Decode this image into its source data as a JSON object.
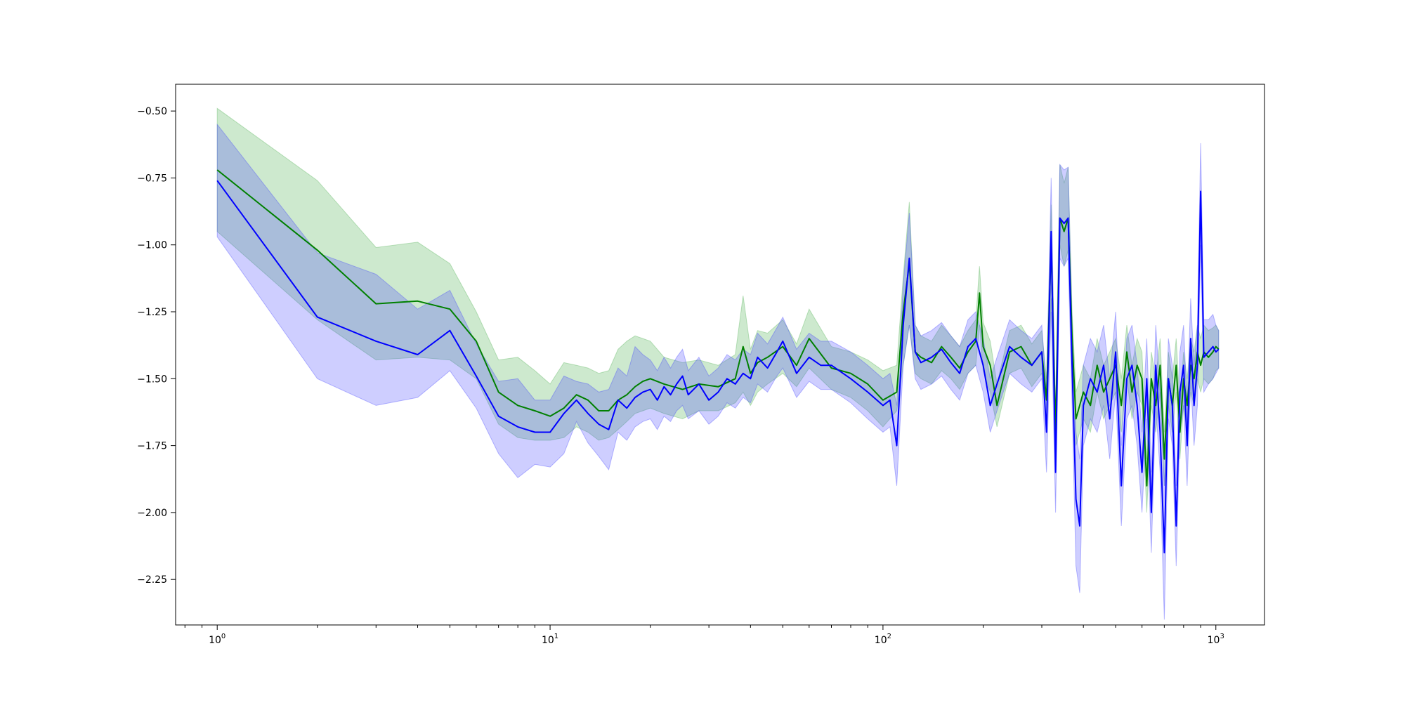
{
  "chart_data": {
    "type": "line",
    "title": "",
    "xlabel": "",
    "ylabel": "",
    "xscale": "log",
    "xlim": [
      0.75,
      1400
    ],
    "ylim": [
      -2.42,
      -0.4
    ],
    "grid": false,
    "x_ticks": [
      {
        "value": 1,
        "base": "10",
        "exp": "0"
      },
      {
        "value": 10,
        "base": "10",
        "exp": "1"
      },
      {
        "value": 100,
        "base": "10",
        "exp": "2"
      },
      {
        "value": 1000,
        "base": "10",
        "exp": "3"
      }
    ],
    "y_ticks": [
      {
        "value": -0.5,
        "label": "−0.50"
      },
      {
        "value": -0.75,
        "label": "−0.75"
      },
      {
        "value": -1.0,
        "label": "−1.00"
      },
      {
        "value": -1.25,
        "label": "−1.25"
      },
      {
        "value": -1.5,
        "label": "−1.50"
      },
      {
        "value": -1.75,
        "label": "−1.75"
      },
      {
        "value": -2.0,
        "label": "−2.00"
      },
      {
        "value": -2.25,
        "label": "−2.25"
      }
    ],
    "series": [
      {
        "color": "#008000",
        "band_color": "#4caf50",
        "band_opacity": 0.28,
        "x": [
          1,
          2,
          3,
          4,
          5,
          6,
          7,
          8,
          9,
          10,
          11,
          12,
          13,
          14,
          15,
          16,
          17,
          18,
          19,
          20,
          22,
          25,
          28,
          32,
          36,
          38,
          40,
          42,
          45,
          50,
          55,
          60,
          70,
          80,
          90,
          100,
          110,
          115,
          120,
          125,
          130,
          140,
          150,
          160,
          170,
          180,
          190,
          195,
          200,
          210,
          220,
          240,
          260,
          280,
          300,
          310,
          320,
          330,
          340,
          350,
          360,
          370,
          380,
          400,
          420,
          440,
          460,
          480,
          500,
          520,
          540,
          560,
          580,
          600,
          620,
          640,
          660,
          680,
          700,
          720,
          740,
          760,
          780,
          800,
          820,
          840,
          860,
          880,
          900,
          920,
          950,
          980,
          1000,
          1020
        ],
        "y": [
          -0.72,
          -1.02,
          -1.22,
          -1.21,
          -1.24,
          -1.36,
          -1.55,
          -1.6,
          -1.62,
          -1.64,
          -1.61,
          -1.56,
          -1.58,
          -1.62,
          -1.62,
          -1.58,
          -1.56,
          -1.53,
          -1.51,
          -1.5,
          -1.52,
          -1.54,
          -1.52,
          -1.53,
          -1.5,
          -1.38,
          -1.48,
          -1.44,
          -1.42,
          -1.38,
          -1.45,
          -1.35,
          -1.46,
          -1.48,
          -1.52,
          -1.58,
          -1.55,
          -1.25,
          -1.07,
          -1.4,
          -1.42,
          -1.44,
          -1.38,
          -1.42,
          -1.46,
          -1.4,
          -1.36,
          -1.18,
          -1.38,
          -1.45,
          -1.6,
          -1.4,
          -1.38,
          -1.45,
          -1.4,
          -1.58,
          -1.0,
          -1.7,
          -0.9,
          -0.95,
          -0.9,
          -1.35,
          -1.65,
          -1.55,
          -1.6,
          -1.45,
          -1.55,
          -1.5,
          -1.45,
          -1.6,
          -1.4,
          -1.55,
          -1.45,
          -1.5,
          -1.9,
          -1.5,
          -1.6,
          -1.45,
          -1.8,
          -1.5,
          -1.6,
          -1.45,
          -1.7,
          -1.5,
          -1.6,
          -1.45,
          -1.5,
          -1.4,
          -1.45,
          -1.4,
          -1.42,
          -1.4,
          -1.38,
          -1.39
        ],
        "y_low": [
          -0.95,
          -1.28,
          -1.43,
          -1.42,
          -1.43,
          -1.5,
          -1.67,
          -1.72,
          -1.73,
          -1.73,
          -1.72,
          -1.68,
          -1.7,
          -1.73,
          -1.72,
          -1.69,
          -1.66,
          -1.63,
          -1.62,
          -1.61,
          -1.63,
          -1.65,
          -1.62,
          -1.62,
          -1.59,
          -1.55,
          -1.6,
          -1.55,
          -1.52,
          -1.48,
          -1.53,
          -1.46,
          -1.54,
          -1.57,
          -1.62,
          -1.68,
          -1.62,
          -1.45,
          -1.3,
          -1.48,
          -1.5,
          -1.52,
          -1.47,
          -1.5,
          -1.54,
          -1.48,
          -1.45,
          -1.3,
          -1.47,
          -1.55,
          -1.68,
          -1.48,
          -1.46,
          -1.53,
          -1.48,
          -1.66,
          -1.2,
          -1.8,
          -1.0,
          -1.08,
          -1.02,
          -1.45,
          -1.75,
          -1.65,
          -1.7,
          -1.55,
          -1.65,
          -1.6,
          -1.55,
          -1.7,
          -1.5,
          -1.65,
          -1.55,
          -1.6,
          -2.0,
          -1.6,
          -1.7,
          -1.55,
          -1.9,
          -1.6,
          -1.7,
          -1.55,
          -1.8,
          -1.6,
          -1.7,
          -1.55,
          -1.6,
          -1.5,
          -1.55,
          -1.5,
          -1.52,
          -1.5,
          -1.47,
          -1.46
        ],
        "y_high": [
          -0.49,
          -0.76,
          -1.01,
          -0.99,
          -1.07,
          -1.25,
          -1.43,
          -1.42,
          -1.47,
          -1.52,
          -1.44,
          -1.45,
          -1.46,
          -1.48,
          -1.47,
          -1.39,
          -1.36,
          -1.34,
          -1.35,
          -1.36,
          -1.42,
          -1.44,
          -1.43,
          -1.45,
          -1.41,
          -1.19,
          -1.39,
          -1.32,
          -1.33,
          -1.28,
          -1.37,
          -1.24,
          -1.38,
          -1.4,
          -1.43,
          -1.47,
          -1.45,
          -1.12,
          -0.84,
          -1.3,
          -1.34,
          -1.36,
          -1.3,
          -1.34,
          -1.38,
          -1.32,
          -1.28,
          -1.08,
          -1.29,
          -1.36,
          -1.52,
          -1.32,
          -1.3,
          -1.37,
          -1.32,
          -1.5,
          -0.85,
          -1.6,
          -0.7,
          -0.77,
          -0.71,
          -1.25,
          -1.55,
          -1.45,
          -1.5,
          -1.35,
          -1.45,
          -1.4,
          -1.35,
          -1.5,
          -1.3,
          -1.45,
          -1.35,
          -1.4,
          -1.8,
          -1.4,
          -1.5,
          -1.35,
          -1.7,
          -1.4,
          -1.5,
          -1.35,
          -1.6,
          -1.4,
          -1.5,
          -1.35,
          -1.4,
          -1.3,
          -1.35,
          -1.3,
          -1.32,
          -1.31,
          -1.3,
          -1.32
        ]
      },
      {
        "color": "#0000ff",
        "band_color": "#4040ff",
        "band_opacity": 0.26,
        "x": [
          1,
          2,
          3,
          4,
          5,
          6,
          7,
          8,
          9,
          10,
          11,
          12,
          13,
          14,
          15,
          16,
          17,
          18,
          19,
          20,
          21,
          22,
          23,
          24,
          25,
          26,
          28,
          30,
          32,
          34,
          36,
          38,
          40,
          42,
          45,
          48,
          50,
          55,
          60,
          65,
          70,
          80,
          90,
          100,
          105,
          110,
          115,
          120,
          125,
          130,
          140,
          150,
          160,
          170,
          180,
          190,
          195,
          200,
          210,
          220,
          240,
          260,
          280,
          300,
          310,
          320,
          330,
          340,
          350,
          360,
          370,
          380,
          390,
          400,
          420,
          440,
          460,
          480,
          500,
          520,
          540,
          560,
          580,
          600,
          620,
          640,
          660,
          680,
          700,
          720,
          740,
          760,
          780,
          800,
          820,
          840,
          860,
          880,
          900,
          920,
          950,
          980,
          1000,
          1020
        ],
        "y": [
          -0.76,
          -1.27,
          -1.36,
          -1.41,
          -1.32,
          -1.49,
          -1.64,
          -1.68,
          -1.7,
          -1.7,
          -1.63,
          -1.58,
          -1.63,
          -1.67,
          -1.69,
          -1.58,
          -1.61,
          -1.57,
          -1.55,
          -1.54,
          -1.58,
          -1.53,
          -1.56,
          -1.52,
          -1.49,
          -1.56,
          -1.52,
          -1.58,
          -1.55,
          -1.5,
          -1.52,
          -1.48,
          -1.5,
          -1.42,
          -1.46,
          -1.4,
          -1.36,
          -1.48,
          -1.42,
          -1.45,
          -1.45,
          -1.5,
          -1.55,
          -1.6,
          -1.58,
          -1.75,
          -1.3,
          -1.05,
          -1.4,
          -1.44,
          -1.42,
          -1.39,
          -1.44,
          -1.48,
          -1.38,
          -1.35,
          -1.4,
          -1.45,
          -1.6,
          -1.52,
          -1.38,
          -1.42,
          -1.45,
          -1.4,
          -1.7,
          -0.95,
          -1.85,
          -0.9,
          -0.92,
          -0.9,
          -1.45,
          -1.95,
          -2.05,
          -1.6,
          -1.5,
          -1.55,
          -1.45,
          -1.65,
          -1.4,
          -1.9,
          -1.5,
          -1.45,
          -1.6,
          -1.85,
          -1.5,
          -2.0,
          -1.45,
          -1.7,
          -2.15,
          -1.5,
          -1.6,
          -2.05,
          -1.55,
          -1.45,
          -1.75,
          -1.35,
          -1.6,
          -1.45,
          -0.8,
          -1.42,
          -1.4,
          -1.38,
          -1.4,
          -1.39
        ],
        "y_low": [
          -0.97,
          -1.5,
          -1.6,
          -1.57,
          -1.47,
          -1.61,
          -1.78,
          -1.87,
          -1.82,
          -1.83,
          -1.78,
          -1.66,
          -1.74,
          -1.79,
          -1.84,
          -1.7,
          -1.73,
          -1.68,
          -1.66,
          -1.65,
          -1.69,
          -1.64,
          -1.66,
          -1.62,
          -1.6,
          -1.65,
          -1.62,
          -1.67,
          -1.64,
          -1.59,
          -1.61,
          -1.57,
          -1.59,
          -1.52,
          -1.55,
          -1.49,
          -1.46,
          -1.57,
          -1.51,
          -1.54,
          -1.54,
          -1.59,
          -1.65,
          -1.7,
          -1.68,
          -1.9,
          -1.45,
          -1.3,
          -1.5,
          -1.54,
          -1.52,
          -1.49,
          -1.54,
          -1.58,
          -1.48,
          -1.45,
          -1.5,
          -1.55,
          -1.7,
          -1.62,
          -1.48,
          -1.52,
          -1.55,
          -1.5,
          -1.85,
          -1.25,
          -2.0,
          -1.05,
          -1.08,
          -1.05,
          -1.6,
          -2.2,
          -2.3,
          -1.75,
          -1.65,
          -1.7,
          -1.6,
          -1.8,
          -1.55,
          -2.05,
          -1.65,
          -1.6,
          -1.75,
          -2.0,
          -1.65,
          -2.15,
          -1.6,
          -1.85,
          -2.4,
          -1.65,
          -1.75,
          -2.2,
          -1.7,
          -1.6,
          -1.9,
          -1.5,
          -1.75,
          -1.6,
          -1.0,
          -1.55,
          -1.52,
          -1.5,
          -1.48,
          -1.46
        ],
        "y_high": [
          -0.55,
          -1.03,
          -1.11,
          -1.24,
          -1.17,
          -1.37,
          -1.51,
          -1.5,
          -1.58,
          -1.58,
          -1.49,
          -1.51,
          -1.52,
          -1.55,
          -1.54,
          -1.46,
          -1.49,
          -1.38,
          -1.41,
          -1.43,
          -1.47,
          -1.42,
          -1.46,
          -1.42,
          -1.39,
          -1.47,
          -1.42,
          -1.49,
          -1.46,
          -1.41,
          -1.43,
          -1.39,
          -1.41,
          -1.33,
          -1.37,
          -1.31,
          -1.27,
          -1.39,
          -1.33,
          -1.36,
          -1.36,
          -1.4,
          -1.45,
          -1.5,
          -1.48,
          -1.6,
          -1.15,
          -0.88,
          -1.3,
          -1.34,
          -1.32,
          -1.29,
          -1.34,
          -1.38,
          -1.28,
          -1.25,
          -1.3,
          -1.35,
          -1.5,
          -1.42,
          -1.28,
          -1.32,
          -1.35,
          -1.3,
          -1.55,
          -0.75,
          -1.7,
          -0.7,
          -0.72,
          -0.71,
          -1.3,
          -1.7,
          -1.8,
          -1.45,
          -1.35,
          -1.4,
          -1.3,
          -1.5,
          -1.25,
          -1.75,
          -1.35,
          -1.3,
          -1.45,
          -1.7,
          -1.35,
          -1.85,
          -1.3,
          -1.55,
          -1.9,
          -1.35,
          -1.45,
          -1.9,
          -1.4,
          -1.3,
          -1.6,
          -1.2,
          -1.45,
          -1.3,
          -0.62,
          -1.28,
          -1.28,
          -1.26,
          -1.3,
          -1.32
        ]
      }
    ]
  }
}
